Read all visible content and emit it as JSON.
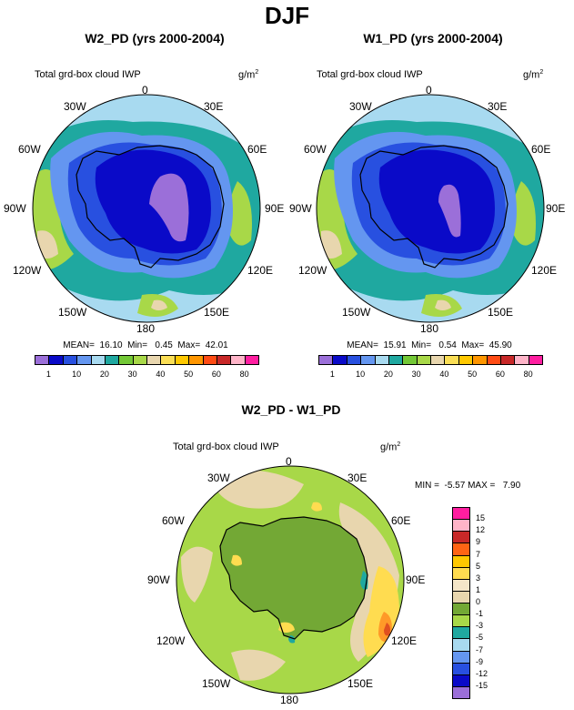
{
  "main_title": "DJF",
  "panels": [
    {
      "title": "W2_PD (yrs 2000-2004)",
      "var_label": "Total grd-box cloud IWP",
      "units_base": "g/m",
      "units_exp": "2",
      "stats": "MEAN=  16.10  Min=   0.45  Max=  42.01"
    },
    {
      "title": "W1_PD (yrs 2000-2004)",
      "var_label": "Total grd-box cloud IWP",
      "units_base": "g/m",
      "units_exp": "2",
      "stats": "MEAN=  15.91  Min=   0.54  Max=  45.90"
    },
    {
      "title": "W2_PD - W1_PD",
      "var_label": "Total grd-box cloud IWP",
      "units_base": "g/m",
      "units_exp": "2",
      "stats": "MIN =  -5.57 MAX =   7.90"
    }
  ],
  "lon_labels": {
    "top": "0",
    "upper_right": "30E",
    "right_high": "60E",
    "right": "90E",
    "right_low": "120E",
    "lower_right": "150E",
    "bottom": "180",
    "lower_left": "150W",
    "left_low": "120W",
    "left": "90W",
    "left_high": "60W",
    "upper_left": "30W"
  },
  "colorbar_abs": {
    "colors": [
      "#9b6fd9",
      "#0a0ac8",
      "#2850e0",
      "#6496f0",
      "#a8daf0",
      "#1fa8a0",
      "#73c836",
      "#a8d848",
      "#e8d6ae",
      "#fade55",
      "#ffc800",
      "#ff9600",
      "#ff4b14",
      "#c82828",
      "#ffb4c8",
      "#ff1ea0"
    ],
    "labels": [
      "1",
      "10",
      "20",
      "30",
      "40",
      "50",
      "60",
      "80"
    ]
  },
  "colorbar_diff": {
    "colors": [
      "#9b6fd9",
      "#0a0ac8",
      "#2850e0",
      "#6496f0",
      "#a8daf0",
      "#1fa8a0",
      "#a8d848",
      "#73a835",
      "#e8d6ae",
      "#f5e6c8",
      "#ffdc50",
      "#ffc800",
      "#ff6414",
      "#c82828",
      "#ffb4c8",
      "#ff1ea0"
    ],
    "labels": [
      "-15",
      "-12",
      "-9",
      "-7",
      "-5",
      "-3",
      "-1",
      "0",
      "1",
      "3",
      "5",
      "7",
      "9",
      "12",
      "15"
    ]
  },
  "map_colors": {
    "ocean": "#a8daf0",
    "teal": "#1fa8a0",
    "green": "#a8d848",
    "tan": "#e8d6ae",
    "blue1": "#6496f0",
    "blue2": "#2850e0",
    "blue3": "#0a0ac8",
    "purple": "#9b6fd9",
    "diff_bg": "#a8d848",
    "diff_dark": "#73a835",
    "diff_tan": "#e8d6ae",
    "diff_yellow": "#ffdc50",
    "diff_orange": "#ff9a28",
    "diff_red": "#e05020",
    "diff_cyan": "#1fa8a0"
  }
}
